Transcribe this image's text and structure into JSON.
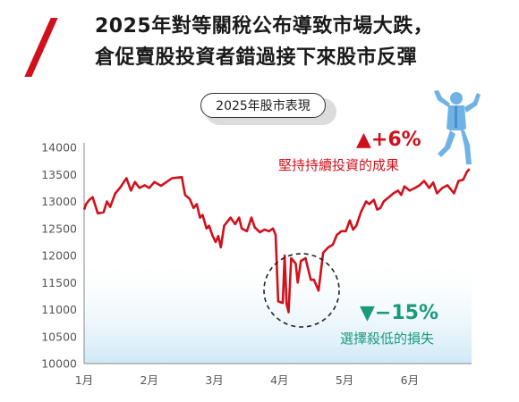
{
  "headline": {
    "line1": "2025年對等關稅公布導致市場大跌，",
    "line2": "倉促賣股投資者錯過接下來股市反彈"
  },
  "chart_data": {
    "type": "line",
    "title": "2025年股市表現",
    "xlabel": "",
    "ylabel": "",
    "x_ticks": [
      "1月",
      "2月",
      "3月",
      "4月",
      "5月",
      "6月"
    ],
    "y_ticks": [
      10000,
      10500,
      11000,
      11500,
      12000,
      12500,
      13000,
      13500,
      14000
    ],
    "ylim": [
      10000,
      14000
    ],
    "x_range": [
      1,
      6.95
    ],
    "grid": false,
    "series": [
      {
        "color": "#d0101b",
        "points": [
          [
            1.0,
            12850
          ],
          [
            1.03,
            12950
          ],
          [
            1.08,
            13030
          ],
          [
            1.13,
            13080
          ],
          [
            1.17,
            12930
          ],
          [
            1.21,
            12780
          ],
          [
            1.3,
            12800
          ],
          [
            1.35,
            13000
          ],
          [
            1.4,
            12900
          ],
          [
            1.48,
            13150
          ],
          [
            1.55,
            13250
          ],
          [
            1.65,
            13430
          ],
          [
            1.72,
            13200
          ],
          [
            1.78,
            13360
          ],
          [
            1.85,
            13250
          ],
          [
            1.93,
            13300
          ],
          [
            2.0,
            13250
          ],
          [
            2.08,
            13360
          ],
          [
            2.18,
            13290
          ],
          [
            2.28,
            13370
          ],
          [
            2.35,
            13430
          ],
          [
            2.42,
            13440
          ],
          [
            2.5,
            13450
          ],
          [
            2.55,
            13120
          ],
          [
            2.62,
            13050
          ],
          [
            2.68,
            12880
          ],
          [
            2.73,
            12950
          ],
          [
            2.78,
            12700
          ],
          [
            2.82,
            12750
          ],
          [
            2.88,
            12500
          ],
          [
            2.92,
            12550
          ],
          [
            2.97,
            12370
          ],
          [
            3.02,
            12250
          ],
          [
            3.06,
            12360
          ],
          [
            3.1,
            12150
          ],
          [
            3.15,
            12550
          ],
          [
            3.25,
            12700
          ],
          [
            3.32,
            12580
          ],
          [
            3.38,
            12700
          ],
          [
            3.42,
            12500
          ],
          [
            3.5,
            12450
          ],
          [
            3.57,
            12700
          ],
          [
            3.62,
            12520
          ],
          [
            3.7,
            12430
          ],
          [
            3.77,
            12480
          ],
          [
            3.84,
            12450
          ],
          [
            3.9,
            12500
          ],
          [
            3.94,
            12380
          ],
          [
            3.98,
            11150
          ],
          [
            4.05,
            11120
          ],
          [
            4.08,
            12000
          ],
          [
            4.11,
            11100
          ],
          [
            4.14,
            10950
          ],
          [
            4.18,
            11950
          ],
          [
            4.25,
            11850
          ],
          [
            4.28,
            11500
          ],
          [
            4.33,
            11900
          ],
          [
            4.4,
            11950
          ],
          [
            4.48,
            11550
          ],
          [
            4.53,
            11550
          ],
          [
            4.6,
            11350
          ],
          [
            4.67,
            12050
          ],
          [
            4.75,
            12150
          ],
          [
            4.82,
            12200
          ],
          [
            4.88,
            12380
          ],
          [
            4.95,
            12450
          ],
          [
            5.02,
            12450
          ],
          [
            5.08,
            12650
          ],
          [
            5.13,
            12480
          ],
          [
            5.18,
            12550
          ],
          [
            5.25,
            12800
          ],
          [
            5.33,
            13000
          ],
          [
            5.38,
            12950
          ],
          [
            5.45,
            13030
          ],
          [
            5.5,
            12850
          ],
          [
            5.55,
            12880
          ],
          [
            5.6,
            13000
          ],
          [
            5.68,
            13080
          ],
          [
            5.75,
            13150
          ],
          [
            5.82,
            13200
          ],
          [
            5.87,
            13120
          ],
          [
            5.92,
            13280
          ],
          [
            6.0,
            13200
          ],
          [
            6.08,
            13250
          ],
          [
            6.15,
            13300
          ],
          [
            6.22,
            13380
          ],
          [
            6.3,
            13250
          ],
          [
            6.36,
            13350
          ],
          [
            6.42,
            13150
          ],
          [
            6.5,
            13250
          ],
          [
            6.58,
            13300
          ],
          [
            6.68,
            13150
          ],
          [
            6.75,
            13380
          ],
          [
            6.82,
            13400
          ],
          [
            6.88,
            13550
          ],
          [
            6.92,
            13600
          ]
        ]
      }
    ],
    "annotations": [
      {
        "arrow": "▲",
        "value": "+6%",
        "text": "堅持持續投資的成果",
        "color": "#d0101b"
      },
      {
        "arrow": "▼",
        "value": "−15%",
        "text": "選擇殺低的損失",
        "color": "#1a9a7a"
      }
    ]
  },
  "colors": {
    "line": "#d0101b",
    "up": "#d0101b",
    "down": "#1a9a7a",
    "gradient_bottom": "#cfe9f6",
    "figure": "#6fb2e6"
  },
  "icons": [
    "slash-accent",
    "celebrating-person-icon"
  ]
}
